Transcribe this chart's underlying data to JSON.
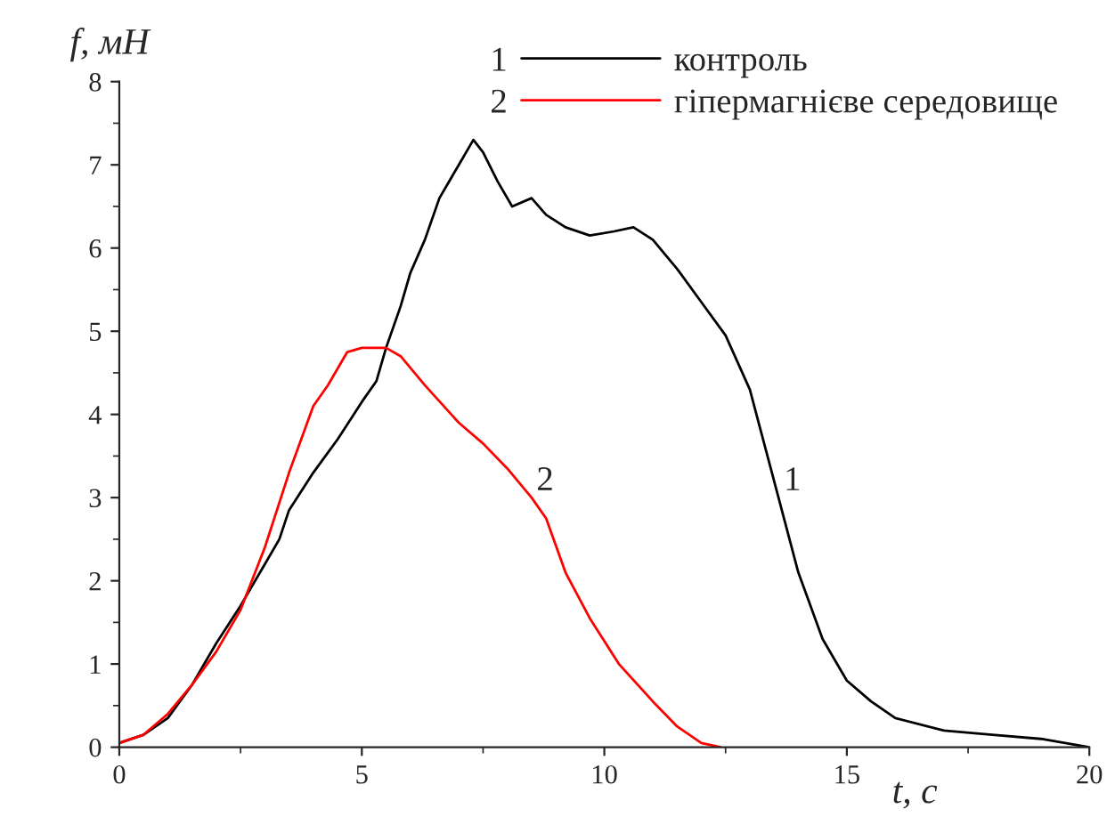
{
  "chart_data": {
    "type": "line",
    "xlabel": "t, с",
    "ylabel": "f, мН",
    "xlim": [
      0,
      20
    ],
    "xticks": [
      0,
      5,
      10,
      15,
      20
    ],
    "ylim": [
      0,
      8
    ],
    "yticks": [
      0,
      1,
      2,
      3,
      4,
      5,
      6,
      7,
      8
    ],
    "grid": false,
    "legend": "top right",
    "line_style": "solid",
    "marker": "none",
    "series": [
      {
        "name": "контроль",
        "color": "#000000",
        "x": [
          0,
          0.5,
          1,
          1.5,
          2,
          2.5,
          3,
          3.3,
          3.5,
          4,
          4.5,
          5,
          5.3,
          5.5,
          5.8,
          6,
          6.3,
          6.6,
          7,
          7.3,
          7.5,
          7.8,
          8.1,
          8.5,
          8.8,
          9.2,
          9.7,
          10.2,
          10.6,
          11,
          11.5,
          12,
          12.5,
          13,
          13.5,
          14,
          14.5,
          15,
          15.5,
          16,
          17,
          18,
          19,
          20
        ],
        "values": [
          0.05,
          0.15,
          0.35,
          0.75,
          1.25,
          1.7,
          2.2,
          2.5,
          2.85,
          3.3,
          3.7,
          4.15,
          4.4,
          4.8,
          5.3,
          5.7,
          6.1,
          6.6,
          7.0,
          7.3,
          7.15,
          6.8,
          6.5,
          6.6,
          6.4,
          6.25,
          6.15,
          6.2,
          6.25,
          6.1,
          5.75,
          5.35,
          4.95,
          4.3,
          3.2,
          2.1,
          1.3,
          0.8,
          0.55,
          0.35,
          0.2,
          0.15,
          0.1,
          0.0
        ]
      },
      {
        "name": "гіпермагнієве середовище",
        "color": "#ff0000",
        "x": [
          0,
          0.5,
          1,
          1.5,
          2,
          2.5,
          3,
          3.5,
          4,
          4.3,
          4.7,
          5,
          5.5,
          5.8,
          6.3,
          7,
          7.5,
          8,
          8.5,
          8.8,
          9.2,
          9.7,
          10.3,
          11,
          11.5,
          12,
          12.4
        ],
        "values": [
          0.05,
          0.15,
          0.4,
          0.75,
          1.15,
          1.65,
          2.4,
          3.3,
          4.1,
          4.35,
          4.75,
          4.8,
          4.8,
          4.7,
          4.35,
          3.9,
          3.65,
          3.35,
          3.0,
          2.75,
          2.1,
          1.55,
          1.0,
          0.55,
          0.25,
          0.05,
          0.0
        ]
      }
    ],
    "annotations": [
      {
        "text": "1",
        "x": 13.7,
        "y": 3.0
      },
      {
        "text": "2",
        "x": 8.6,
        "y": 3.0
      }
    ]
  }
}
